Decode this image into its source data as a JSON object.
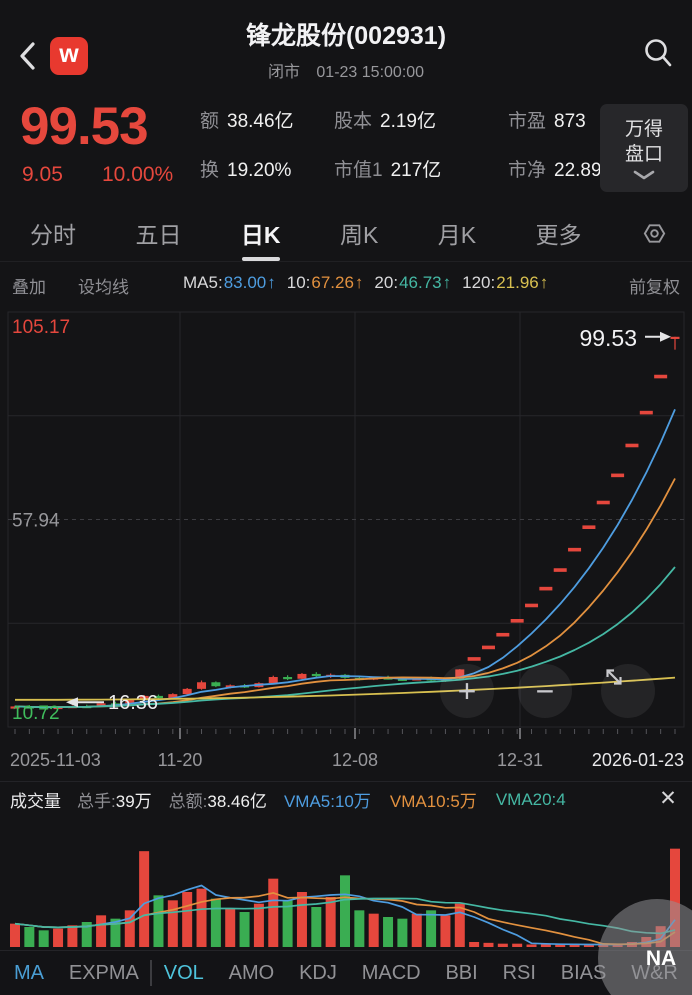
{
  "header": {
    "title": "锋龙股份(002931)",
    "market_status": "闭市",
    "timestamp": "01-23 15:00:00",
    "logo_letter": "w"
  },
  "quote": {
    "price": "99.53",
    "change": "9.05",
    "change_percent": "10.00%",
    "stats": [
      {
        "label": "额",
        "value": "38.46亿"
      },
      {
        "label": "股本",
        "value": "2.19亿"
      },
      {
        "label": "市盈",
        "value": "873"
      },
      {
        "label": "换",
        "value": "19.20%"
      },
      {
        "label": "市值1",
        "value": "217亿"
      },
      {
        "label": "市净",
        "value": "22.89"
      }
    ],
    "pankou": {
      "line1": "万得",
      "line2": "盘口"
    }
  },
  "period_tabs": [
    {
      "label": "分时"
    },
    {
      "label": "五日"
    },
    {
      "label": "日K",
      "active": true
    },
    {
      "label": "周K"
    },
    {
      "label": "月K"
    },
    {
      "label": "更多"
    }
  ],
  "ma_bar": {
    "overlay": "叠加",
    "set_average": "设均线",
    "right": "前复权",
    "items": [
      {
        "label": "MA5:",
        "value": "83.00",
        "arrow": "↑",
        "color": "#4e9de0"
      },
      {
        "label": "10:",
        "value": "67.26",
        "arrow": "↑",
        "color": "#e2913f"
      },
      {
        "label": "20:",
        "value": "46.73",
        "arrow": "↑",
        "color": "#45b8a4"
      },
      {
        "label": "120:",
        "value": "21.96",
        "arrow": "↑",
        "color": "#d8c050"
      }
    ]
  },
  "chart_data": [
    {
      "type": "candlestick",
      "title": "日K 前复权",
      "ylim": [
        10.72,
        105.17
      ],
      "y_labels": [
        {
          "text": "105.17",
          "price": 105.17,
          "color": "#e5473d"
        },
        {
          "text": "57.94",
          "price": 57.94,
          "color": "#97979b"
        },
        {
          "text": "10.72",
          "price": 10.72,
          "color": "#3fbc5c"
        }
      ],
      "x_labels": [
        "2025-11-03",
        "11-20",
        "12-08",
        "12-31",
        "2026-01-23"
      ],
      "annotations": [
        {
          "text": "16.36",
          "price": 16.36,
          "side": "left"
        },
        {
          "text": "99.53",
          "price": 99.53,
          "side": "right"
        }
      ],
      "ma_series": [
        {
          "name": "MA5",
          "window": 5,
          "color": "#4e9de0",
          "last": 83.0
        },
        {
          "name": "MA10",
          "window": 10,
          "color": "#e2913f",
          "last": 67.26
        },
        {
          "name": "MA20",
          "window": 20,
          "color": "#45b8a4",
          "last": 46.73
        },
        {
          "name": "MA120",
          "color": "#d8c050",
          "synthetic": {
            "start": 16.9,
            "end": 21.96,
            "pow": 2.2
          },
          "last": 21.96
        }
      ],
      "candles": [
        [
          15.2,
          15.6,
          15.0,
          15.4
        ],
        [
          15.4,
          15.7,
          15.1,
          15.2
        ],
        [
          15.2,
          15.5,
          14.9,
          15.1
        ],
        [
          15.1,
          15.4,
          14.9,
          15.3
        ],
        [
          15.3,
          15.6,
          15.1,
          15.5
        ],
        [
          15.5,
          15.8,
          15.2,
          15.4
        ],
        [
          15.4,
          16.3,
          15.3,
          16.1
        ],
        [
          16.1,
          16.5,
          15.8,
          16.0
        ],
        [
          16.0,
          17.2,
          15.9,
          17.0
        ],
        [
          17.0,
          18.0,
          16.8,
          17.8
        ],
        [
          17.8,
          18.1,
          17.1,
          17.3
        ],
        [
          17.3,
          18.4,
          17.2,
          18.2
        ],
        [
          18.2,
          19.6,
          18.0,
          19.4
        ],
        [
          19.4,
          21.3,
          19.2,
          20.9
        ],
        [
          20.9,
          21.1,
          19.8,
          20.0
        ],
        [
          20.0,
          20.4,
          19.5,
          20.2
        ],
        [
          20.2,
          20.5,
          19.6,
          19.8
        ],
        [
          19.8,
          20.9,
          19.7,
          20.7
        ],
        [
          20.7,
          22.4,
          20.6,
          22.1
        ],
        [
          22.1,
          22.5,
          21.4,
          21.7
        ],
        [
          21.7,
          23.0,
          21.6,
          22.8
        ],
        [
          22.8,
          23.2,
          22.1,
          22.4
        ],
        [
          22.4,
          22.9,
          21.9,
          22.6
        ],
        [
          22.6,
          22.8,
          21.7,
          21.9
        ],
        [
          21.9,
          22.3,
          21.3,
          21.5
        ],
        [
          21.5,
          22.2,
          21.4,
          22.0
        ],
        [
          22.0,
          22.4,
          21.5,
          21.7
        ],
        [
          21.7,
          22.1,
          21.2,
          21.4
        ],
        [
          21.4,
          22.0,
          21.3,
          21.8
        ],
        [
          21.8,
          22.2,
          21.1,
          21.3
        ],
        [
          21.3,
          21.9,
          21.0,
          21.7
        ],
        [
          21.7,
          23.9,
          21.6,
          23.83
        ],
        [
          26.21,
          26.21,
          26.21,
          26.21
        ],
        [
          28.83,
          28.83,
          28.83,
          28.83
        ],
        [
          31.72,
          31.72,
          31.72,
          31.72
        ],
        [
          34.89,
          34.89,
          34.89,
          34.89
        ],
        [
          38.38,
          38.38,
          38.38,
          38.38
        ],
        [
          42.21,
          42.21,
          42.21,
          42.21
        ],
        [
          46.44,
          46.44,
          46.44,
          46.44
        ],
        [
          51.08,
          51.08,
          51.08,
          51.08
        ],
        [
          56.19,
          56.19,
          56.19,
          56.19
        ],
        [
          61.81,
          61.81,
          61.81,
          61.81
        ],
        [
          67.99,
          67.99,
          67.99,
          67.99
        ],
        [
          74.79,
          74.79,
          74.79,
          74.79
        ],
        [
          82.27,
          82.27,
          82.27,
          82.27
        ],
        [
          90.48,
          90.48,
          90.48,
          90.48
        ],
        [
          99.53,
          99.53,
          96.6,
          99.53
        ]
      ]
    },
    {
      "type": "bar",
      "name": "成交量",
      "ymax": 120,
      "values": [
        28,
        24,
        20,
        22,
        26,
        30,
        38,
        34,
        44,
        115,
        62,
        56,
        66,
        70,
        58,
        46,
        42,
        52,
        82,
        56,
        66,
        48,
        60,
        86,
        44,
        40,
        36,
        34,
        40,
        44,
        38,
        52,
        6,
        5,
        4,
        4,
        3,
        3,
        3,
        3,
        3,
        3,
        3,
        6,
        12,
        25,
        118
      ],
      "vma_series": [
        {
          "name": "VMA5",
          "window": 5,
          "color": "#4e9de0"
        },
        {
          "name": "VMA10",
          "window": 10,
          "color": "#e2913f"
        },
        {
          "name": "VMA20",
          "window": 20,
          "color": "#45b8a4"
        }
      ]
    }
  ],
  "volume_bar": {
    "title": "成交量",
    "pairs": [
      {
        "label": "总手:",
        "value": "39万"
      },
      {
        "label": "总额:",
        "value": "38.46亿"
      }
    ],
    "vma_items": [
      {
        "text": "VMA5:10万",
        "color": "#4e9de0"
      },
      {
        "text": "VMA10:5万",
        "color": "#e2913f"
      },
      {
        "text": "VMA20:4",
        "color": "#45b8a4"
      }
    ],
    "close_label": "✕"
  },
  "indicator_tabs": [
    {
      "label": "MA",
      "color": "#4a9ed4"
    },
    {
      "label": "EXPMA"
    },
    {
      "label": "VOL",
      "color": "#4ec3db",
      "active": true
    },
    {
      "label": "AMO"
    },
    {
      "label": "KDJ"
    },
    {
      "label": "MACD"
    },
    {
      "label": "BBI"
    },
    {
      "label": "RSI"
    },
    {
      "label": "BIAS"
    },
    {
      "label": "W&R"
    }
  ],
  "na_badge": "NA",
  "colors": {
    "red": "#e5473d",
    "green": "#3aad52",
    "blue": "#4e9de0",
    "orange": "#e2913f",
    "teal": "#45b8a4",
    "yellow": "#d8c050",
    "grid": "#26262a",
    "grid_dash": "#3c3c41",
    "text_gray": "#8f8f94",
    "text_light": "#f0f0f0"
  }
}
